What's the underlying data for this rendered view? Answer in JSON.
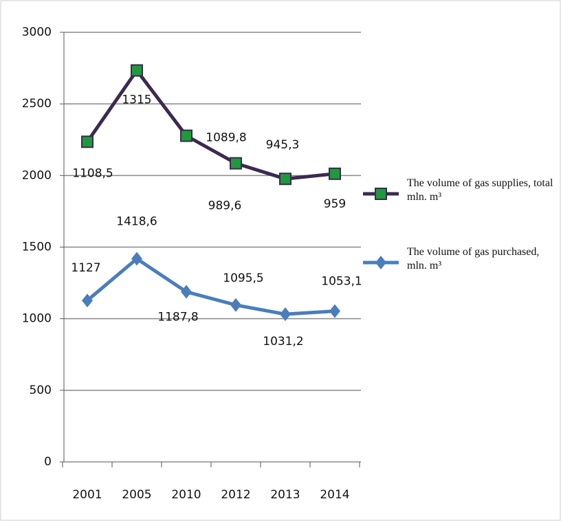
{
  "chart_data": {
    "type": "line",
    "stacked": true,
    "categories": [
      "2001",
      "2005",
      "2010",
      "2012",
      "2013",
      "2014"
    ],
    "series": [
      {
        "name": "The volume of gas purchased, mln. m³",
        "color": "#4a7ebb",
        "marker": "diamond",
        "values": [
          1127,
          1418.6,
          1187.8,
          1095.5,
          1031.2,
          1053.1
        ],
        "value_labels": [
          "1127",
          "1418,6",
          "1187,8",
          "1095,5",
          "1031,2",
          "1053,1"
        ]
      },
      {
        "name": "The volume of gas supplies, total mln. m³",
        "color": "#3b2a50",
        "marker": "square",
        "marker_color": "#1e9a3c",
        "values": [
          1108.5,
          1315,
          1089.8,
          989.6,
          945.3,
          959
        ],
        "value_labels": [
          "1108,5",
          "1315",
          "1089,8",
          "989,6",
          "945,3",
          "959"
        ]
      }
    ],
    "ylim": [
      0,
      3000
    ],
    "yticks": [
      0,
      500,
      1000,
      1500,
      2000,
      2500,
      3000
    ],
    "grid": true,
    "legend": "right"
  }
}
